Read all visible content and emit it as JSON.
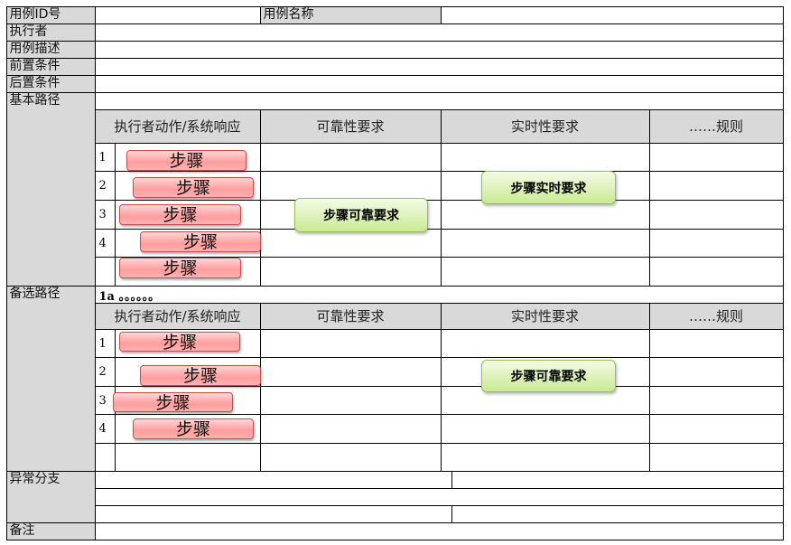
{
  "labels": {
    "id": "用例ID号",
    "name": "用例名称",
    "actor": "执行者",
    "desc": "用例描述",
    "pre": "前置条件",
    "post": "后置条件",
    "basic": "基本路径",
    "alt": "备选路径",
    "exception": "异常分支",
    "note": "备注"
  },
  "headers": {
    "action": "执行者动作/系统响应",
    "reliability": "可靠性要求",
    "realtime": "实时性要求",
    "rules": "……规则"
  },
  "basic_steps": [
    {
      "num": "1",
      "label": "步骤"
    },
    {
      "num": "2",
      "label": "步骤"
    },
    {
      "num": "3",
      "label": "步骤"
    },
    {
      "num": "4",
      "label": "步骤"
    },
    {
      "num": "",
      "label": "步骤"
    }
  ],
  "basic_reliability": "步骤可靠要求",
  "basic_realtime": "步骤实时要求",
  "alt_path_label": "1a 。。。。。。",
  "alt_steps": [
    {
      "num": "1",
      "label": "步骤"
    },
    {
      "num": "2",
      "label": "步骤"
    },
    {
      "num": "3",
      "label": "步骤"
    },
    {
      "num": "4",
      "label": "步骤"
    }
  ],
  "alt_reliability": "步骤可靠要求"
}
